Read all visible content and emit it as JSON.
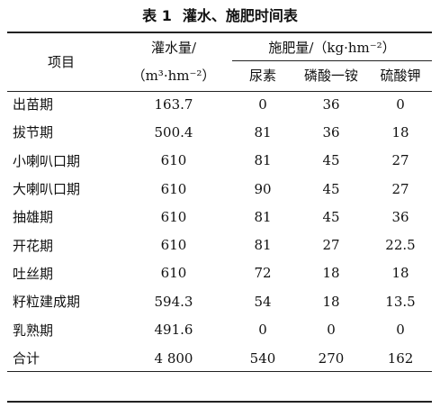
{
  "title": {
    "number": "表 1",
    "text": "灌水、施肥时间表"
  },
  "header": {
    "item": "项目",
    "irrigation_label": "灌水量/",
    "irrigation_unit": "（m³·hm⁻²）",
    "fert_label": "施肥量/（kg·hm⁻²）",
    "urea": "尿素",
    "map": "磷酸一铵",
    "sop": "硫酸钾"
  },
  "rows": [
    {
      "name": "出苗期",
      "water": "163.7",
      "urea": "0",
      "map": "36",
      "sop": "0"
    },
    {
      "name": "拔节期",
      "water": "500.4",
      "urea": "81",
      "map": "36",
      "sop": "18"
    },
    {
      "name": "小喇叭口期",
      "water": "610",
      "urea": "81",
      "map": "45",
      "sop": "27"
    },
    {
      "name": "大喇叭口期",
      "water": "610",
      "urea": "90",
      "map": "45",
      "sop": "27"
    },
    {
      "name": "抽雄期",
      "water": "610",
      "urea": "81",
      "map": "45",
      "sop": "36"
    },
    {
      "name": "开花期",
      "water": "610",
      "urea": "81",
      "map": "27",
      "sop": "22.5"
    },
    {
      "name": "吐丝期",
      "water": "610",
      "urea": "72",
      "map": "18",
      "sop": "18"
    },
    {
      "name": "籽粒建成期",
      "water": "594.3",
      "urea": "54",
      "map": "18",
      "sop": "13.5"
    },
    {
      "name": "乳熟期",
      "water": "491.6",
      "urea": "0",
      "map": "0",
      "sop": "0"
    }
  ],
  "total": {
    "name": "合计",
    "water": "4 800",
    "urea": "540",
    "map": "270",
    "sop": "162"
  }
}
